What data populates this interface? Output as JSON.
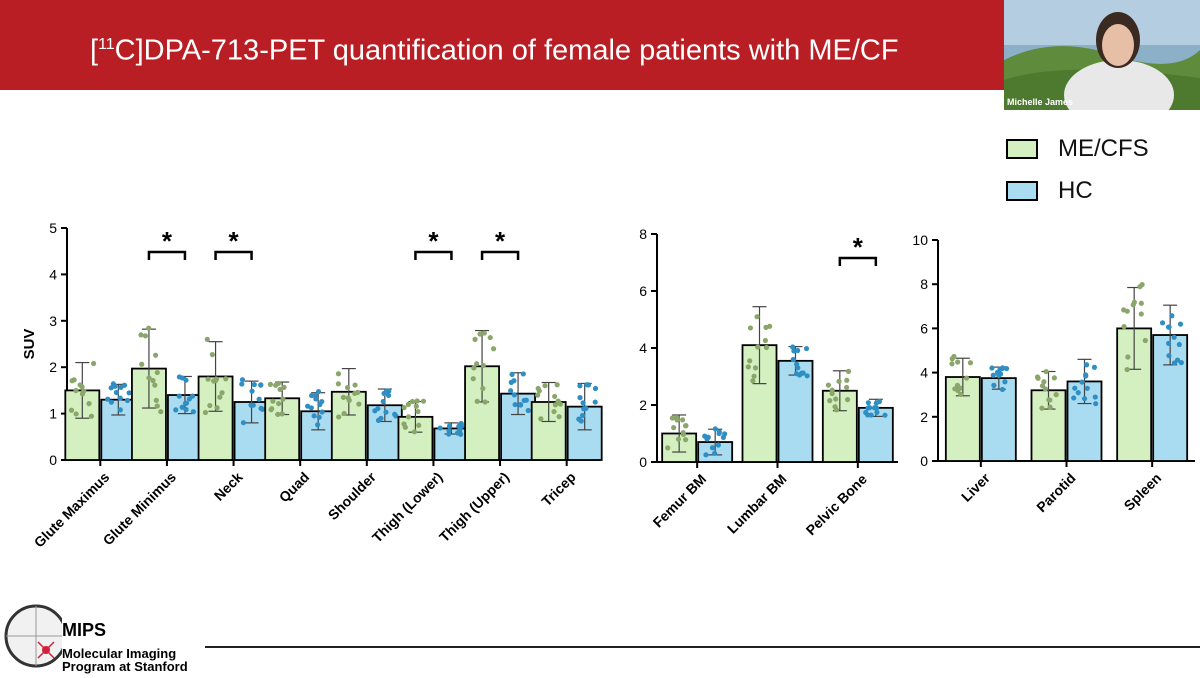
{
  "slide": {
    "title_prefix": "[",
    "title_sup": "11",
    "title_rest": "C]DPA-713-PET quantification of female patients with ME/CF",
    "presenter_name": "Michelle James",
    "logo_title": "MIPS",
    "logo_line1": "Molecular  Imaging",
    "logo_line2": "Program at Stanford"
  },
  "legend": {
    "items": [
      {
        "label": "ME/CFS",
        "color": "#d4efc0"
      },
      {
        "label": "HC",
        "color": "#a9dcf1"
      }
    ]
  },
  "colors": {
    "mecfs_bar": "#d4efc0",
    "hc_bar": "#a9dcf1",
    "mecfs_dot": "#8aa66a",
    "hc_dot": "#2f8fc5",
    "header": "#b81e24"
  },
  "chart_data": [
    {
      "type": "bar",
      "ylabel": "SUV",
      "ylim": [
        0,
        5
      ],
      "yticks": [
        "0",
        "1",
        "2",
        "3",
        "4",
        "5"
      ],
      "categories": [
        "Glute Maximus",
        "Glute Minimus",
        "Neck",
        "Quad",
        "Shoulder",
        "Thigh (Lower)",
        "Thigh (Upper)",
        "Tricep"
      ],
      "series": [
        {
          "name": "ME/CFS",
          "values": [
            1.5,
            1.97,
            1.8,
            1.33,
            1.47,
            0.93,
            2.02,
            1.25
          ],
          "err": [
            0.6,
            0.85,
            0.75,
            0.35,
            0.5,
            0.33,
            0.77,
            0.42
          ]
        },
        {
          "name": "HC",
          "values": [
            1.3,
            1.4,
            1.25,
            1.05,
            1.18,
            0.68,
            1.43,
            1.15
          ],
          "err": [
            0.33,
            0.4,
            0.45,
            0.4,
            0.35,
            0.12,
            0.45,
            0.5
          ]
        }
      ],
      "significant": [
        "Glute Minimus",
        "Neck",
        "Thigh (Lower)",
        "Thigh (Upper)"
      ],
      "significance_mark": "*"
    },
    {
      "type": "bar",
      "ylim": [
        0,
        8
      ],
      "yticks": [
        "0",
        "2",
        "4",
        "6",
        "8"
      ],
      "categories": [
        "Femur BM",
        "Lumbar BM",
        "Pelvic Bone"
      ],
      "series": [
        {
          "name": "ME/CFS",
          "values": [
            1.0,
            4.1,
            2.5
          ],
          "err": [
            0.65,
            1.35,
            0.7
          ]
        },
        {
          "name": "HC",
          "values": [
            0.7,
            3.55,
            1.9
          ],
          "err": [
            0.45,
            0.5,
            0.3
          ]
        }
      ],
      "significant": [
        "Pelvic Bone"
      ],
      "significance_mark": "*"
    },
    {
      "type": "bar",
      "ylim": [
        0,
        10
      ],
      "yticks": [
        "0",
        "2",
        "4",
        "6",
        "8",
        "10"
      ],
      "categories": [
        "Liver",
        "Parotid",
        "Spleen"
      ],
      "series": [
        {
          "name": "ME/CFS",
          "values": [
            3.8,
            3.2,
            6.0
          ],
          "err": [
            0.85,
            0.85,
            1.85
          ]
        },
        {
          "name": "HC",
          "values": [
            3.75,
            3.6,
            5.7
          ],
          "err": [
            0.5,
            1.0,
            1.35
          ]
        }
      ],
      "significant": [],
      "significance_mark": "*"
    }
  ]
}
